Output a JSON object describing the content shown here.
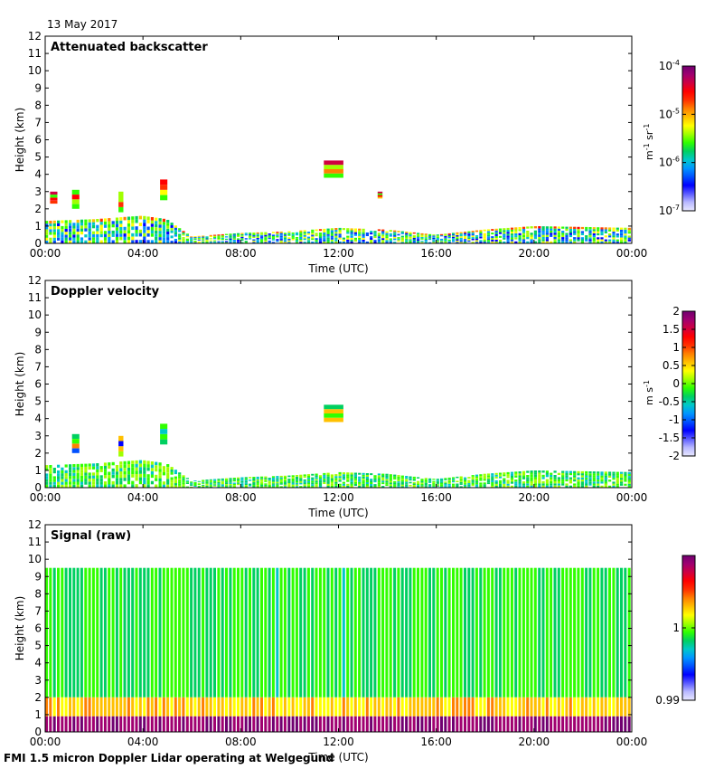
{
  "date": "13 May 2017",
  "footer": "FMI 1.5 micron Doppler Lidar operating at Welgegund",
  "chart_data": [
    {
      "type": "heatmap",
      "title": "Attenuated backscatter",
      "xlabel": "Time (UTC)",
      "ylabel": "Height (km)",
      "xticks": [
        "00:00",
        "04:00",
        "08:00",
        "12:00",
        "16:00",
        "20:00",
        "00:00"
      ],
      "xlim": [
        0,
        24
      ],
      "ylim": [
        0,
        12
      ],
      "yticks": [
        0,
        1,
        2,
        3,
        4,
        5,
        6,
        7,
        8,
        9,
        10,
        11,
        12
      ],
      "colorbar": {
        "scale": "log",
        "range": [
          1e-07,
          0.0001
        ],
        "ticks": [
          {
            "base": "10",
            "exp": "-4",
            "value": -4
          },
          {
            "base": "10",
            "exp": "-5",
            "value": -5
          },
          {
            "base": "10",
            "exp": "-6",
            "value": -6
          },
          {
            "base": "10",
            "exp": "-7",
            "value": -7
          }
        ],
        "label": {
          "a": "m",
          "a_exp": "-1",
          "b": " sr",
          "b_exp": "-1"
        }
      },
      "features": {
        "boundary_layer_top_km": [
          [
            0,
            1.3
          ],
          [
            2,
            1.4
          ],
          [
            4,
            1.6
          ],
          [
            5,
            1.4
          ],
          [
            6,
            0.4
          ],
          [
            8,
            0.6
          ],
          [
            10,
            0.7
          ],
          [
            12,
            0.9
          ],
          [
            14,
            0.8
          ],
          [
            16,
            0.5
          ],
          [
            18,
            0.8
          ],
          [
            20,
            1.0
          ],
          [
            24,
            0.9
          ]
        ],
        "clouds": [
          {
            "t_start": 0.2,
            "t_end": 0.5,
            "z_bottom_km": 2.3,
            "z_top_km": 3.0
          },
          {
            "t_start": 1.1,
            "t_end": 1.4,
            "z_bottom_km": 2.0,
            "z_top_km": 3.1
          },
          {
            "t_start": 3.0,
            "t_end": 3.2,
            "z_bottom_km": 1.8,
            "z_top_km": 3.0
          },
          {
            "t_start": 4.7,
            "t_end": 5.0,
            "z_bottom_km": 2.5,
            "z_top_km": 3.7
          },
          {
            "t_start": 11.4,
            "t_end": 12.2,
            "z_bottom_km": 3.8,
            "z_top_km": 4.8
          },
          {
            "t_start": 13.6,
            "t_end": 13.8,
            "z_bottom_km": 2.6,
            "z_top_km": 3.0
          }
        ]
      }
    },
    {
      "type": "heatmap",
      "title": "Doppler velocity",
      "xlabel": "Time (UTC)",
      "ylabel": "Height (km)",
      "xticks": [
        "00:00",
        "04:00",
        "08:00",
        "12:00",
        "16:00",
        "20:00",
        "00:00"
      ],
      "xlim": [
        0,
        24
      ],
      "ylim": [
        0,
        12
      ],
      "yticks": [
        0,
        1,
        2,
        3,
        4,
        5,
        6,
        7,
        8,
        9,
        10,
        11,
        12
      ],
      "colorbar": {
        "scale": "linear",
        "range": [
          -2,
          2
        ],
        "ticks": [
          "2",
          "1.5",
          "1",
          "0.5",
          "0",
          "-0.5",
          "-1",
          "-1.5",
          "-2"
        ],
        "label": {
          "a": "m",
          "a_exp": "",
          "b": " s",
          "b_exp": "-1"
        }
      },
      "features": {
        "boundary_layer_top_km": [
          [
            0,
            1.3
          ],
          [
            2,
            1.4
          ],
          [
            4,
            1.6
          ],
          [
            5,
            1.4
          ],
          [
            6,
            0.4
          ],
          [
            8,
            0.6
          ],
          [
            10,
            0.7
          ],
          [
            12,
            0.9
          ],
          [
            14,
            0.8
          ],
          [
            16,
            0.5
          ],
          [
            18,
            0.8
          ],
          [
            20,
            1.0
          ],
          [
            24,
            0.9
          ]
        ],
        "clouds": [
          {
            "t_start": 1.1,
            "t_end": 1.4,
            "z_bottom_km": 2.0,
            "z_top_km": 3.1
          },
          {
            "t_start": 3.0,
            "t_end": 3.2,
            "z_bottom_km": 1.8,
            "z_top_km": 3.0
          },
          {
            "t_start": 4.7,
            "t_end": 5.0,
            "z_bottom_km": 2.5,
            "z_top_km": 3.7
          },
          {
            "t_start": 11.4,
            "t_end": 12.2,
            "z_bottom_km": 3.8,
            "z_top_km": 4.8
          }
        ]
      }
    },
    {
      "type": "heatmap",
      "title": "Signal (raw)",
      "xlabel": "Time (UTC)",
      "ylabel": "Height (km)",
      "xticks": [
        "00:00",
        "04:00",
        "08:00",
        "12:00",
        "16:00",
        "20:00",
        "00:00"
      ],
      "xlim": [
        0,
        24
      ],
      "ylim": [
        0,
        12
      ],
      "yticks": [
        0,
        1,
        2,
        3,
        4,
        5,
        6,
        7,
        8,
        9,
        10,
        11,
        12
      ],
      "colorbar": {
        "scale": "linear",
        "range": [
          0.99,
          1.01
        ],
        "ticks": [
          "1",
          "0.99"
        ],
        "label": {
          "a": "",
          "a_exp": "",
          "b": "",
          "b_exp": ""
        }
      },
      "features": {
        "data_top_km": 9.5,
        "enhanced_signal_top_km": 2.0
      }
    }
  ]
}
